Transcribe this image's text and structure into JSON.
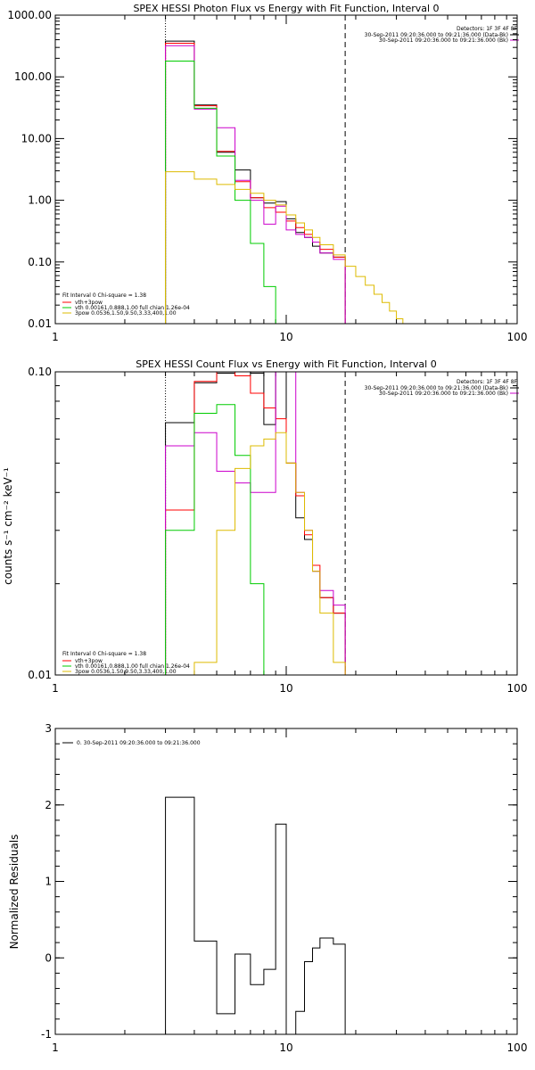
{
  "chart_data": [
    {
      "type": "line",
      "title": "SPEX HESSI Photon Flux vs Energy with Fit Function, Interval 0",
      "xlabel": "",
      "ylabel": "",
      "xscale": "log",
      "yscale": "log",
      "xlim": [
        1,
        100
      ],
      "ylim": [
        0.01,
        1000
      ],
      "xticks": [
        "1",
        "10",
        "100"
      ],
      "yticks": [
        "0.01",
        "0.10",
        "1.00",
        "10.00",
        "100.00",
        "1000.00"
      ],
      "vlines": [
        {
          "x": 3,
          "style": "dotted"
        },
        {
          "x": 18,
          "style": "dashed"
        }
      ],
      "info_lines": [
        "Detectors: 1F 3F 4F 8F",
        "30-Sep-2011 09:20:36.000 to 09:21:36.000 (Data-Bk)",
        "30-Sep-2011 09:20:36.000 to 09:21:36.000 (Bk)"
      ],
      "fit_lines": [
        "Fit Interval 0   Chi-square = 1.38",
        "vth+3pow",
        "vth 0.00161,0.888,1.00  full chian 1.26e-04",
        "3pow 0.0536,1.50,9.50,3.33,400,1.00"
      ],
      "legend_position": "bottom-left",
      "edges": [
        3,
        4,
        5,
        6,
        7,
        8,
        9,
        10,
        11,
        12,
        13,
        14,
        16,
        18,
        20,
        22,
        24,
        26,
        28,
        30,
        32,
        35
      ],
      "series": [
        {
          "name": "Data-Bk",
          "color": "#000000",
          "legend": false,
          "x_end": 18,
          "values": [
            380,
            35,
            6,
            3.1,
            1.1,
            0.9,
            0.95,
            0.5,
            0.3,
            0.25,
            0.18,
            0.14,
            0.12
          ]
        },
        {
          "name": "vth+3pow",
          "color": "#ff0000",
          "legend": true,
          "x_end": 18,
          "values": [
            350,
            34,
            6.2,
            2.0,
            1.1,
            0.76,
            0.64,
            0.46,
            0.36,
            0.28,
            0.21,
            0.16,
            0.12
          ]
        },
        {
          "name": "Bk",
          "color": "#cc00cc",
          "legend": false,
          "x_end": 18,
          "values": [
            320,
            30,
            15,
            2.1,
            1.0,
            0.41,
            0.8,
            0.33,
            0.28,
            0.25,
            0.21,
            0.14,
            0.11
          ]
        },
        {
          "name": "vth",
          "color": "#00cc00",
          "legend": true,
          "x_end": 10,
          "values": [
            180,
            31,
            5.2,
            1.0,
            0.2,
            0.04,
            0.005
          ]
        },
        {
          "name": "3pow",
          "color": "#ddbb00",
          "legend": true,
          "x_end": 35,
          "values": [
            2.9,
            2.2,
            1.8,
            1.5,
            1.3,
            1.0,
            0.84,
            0.58,
            0.43,
            0.33,
            0.25,
            0.19,
            0.13,
            0.085,
            0.058,
            0.042,
            0.03,
            0.022,
            0.016,
            0.012,
            0.009
          ]
        }
      ]
    },
    {
      "type": "line",
      "title": "SPEX HESSI Count Flux vs Energy with Fit Function, Interval 0",
      "xlabel": "",
      "ylabel": "counts s⁻¹ cm⁻² keV⁻¹",
      "xscale": "log",
      "yscale": "log",
      "xlim": [
        1,
        100
      ],
      "ylim": [
        0.01,
        0.1
      ],
      "xticks": [
        "1",
        "10",
        "100"
      ],
      "yticks": [
        "0.01",
        "0.10"
      ],
      "vlines": [
        {
          "x": 3,
          "style": "dotted"
        },
        {
          "x": 18,
          "style": "dashed"
        }
      ],
      "info_lines": [
        "Detectors: 1F 3F 4F 8F",
        "30-Sep-2011 09:20:36.000 to 09:21:36.000 (Data-Bk)",
        "30-Sep-2011 09:20:36.000 to 09:21:36.000 (Bk)"
      ],
      "fit_lines": [
        "Fit Interval 0   Chi-square = 1.38",
        "vth+3pow",
        "vth 0.00161,0.888,1.00  full chian 1.26e-04",
        "3pow 0.0536,1.50,9.50,3.33,400,1.00"
      ],
      "legend_position": "bottom-left",
      "edges": [
        3,
        4,
        5,
        6,
        7,
        8,
        9,
        10,
        11,
        12,
        13,
        14,
        16,
        18
      ],
      "series": [
        {
          "name": "Data-Bk",
          "color": "#000000",
          "legend": false,
          "x_end": 18,
          "values": [
            0.068,
            0.092,
            0.099,
            0.1,
            0.099,
            0.067,
            0.1,
            0.05,
            0.033,
            0.028,
            0.022,
            0.018,
            0.016
          ]
        },
        {
          "name": "vth+3pow",
          "color": "#ff0000",
          "legend": true,
          "x_end": 18,
          "values": [
            0.035,
            0.093,
            0.1,
            0.097,
            0.085,
            0.076,
            0.07,
            0.05,
            0.039,
            0.029,
            0.023,
            0.018,
            0.016
          ]
        },
        {
          "name": "Bk",
          "color": "#cc00cc",
          "legend": false,
          "x_end": 18,
          "values": [
            0.057,
            0.063,
            0.047,
            0.043,
            0.04,
            0.04,
            0.1,
            0.1,
            0.04,
            0.03,
            0.022,
            0.019,
            0.017
          ]
        },
        {
          "name": "vth",
          "color": "#00cc00",
          "legend": true,
          "x_end": 10,
          "values": [
            0.03,
            0.073,
            0.078,
            0.053,
            0.02,
            0.005
          ]
        },
        {
          "name": "3pow",
          "color": "#ddbb00",
          "legend": true,
          "x_end": 18,
          "values": [
            0.005,
            0.011,
            0.03,
            0.048,
            0.057,
            0.06,
            0.063,
            0.05,
            0.04,
            0.03,
            0.022,
            0.016,
            0.011
          ]
        }
      ]
    },
    {
      "type": "line",
      "title": "",
      "xlabel": "",
      "ylabel": "Normalized Residuals",
      "xscale": "log",
      "yscale": "linear",
      "xlim": [
        1,
        100
      ],
      "ylim": [
        -1,
        3
      ],
      "xticks": [
        "1",
        "10",
        "100"
      ],
      "yticks": [
        "-1",
        "0",
        "1",
        "2",
        "3"
      ],
      "info_lines": [
        "0. 30-Sep-2011 09:20:36.000 to 09:21:36.000"
      ],
      "legend_position": "top-left",
      "edges": [
        3,
        4,
        5,
        6,
        7,
        8,
        9,
        10,
        11,
        12,
        13,
        14,
        16,
        18
      ],
      "series": [
        {
          "name": "",
          "color": "#000000",
          "x_end": 18,
          "values": [
            2.1,
            0.22,
            -0.73,
            0.05,
            -0.35,
            -0.15,
            1.75,
            -1.05,
            -0.7,
            -0.05,
            0.13,
            0.26,
            0.18
          ]
        }
      ]
    }
  ]
}
